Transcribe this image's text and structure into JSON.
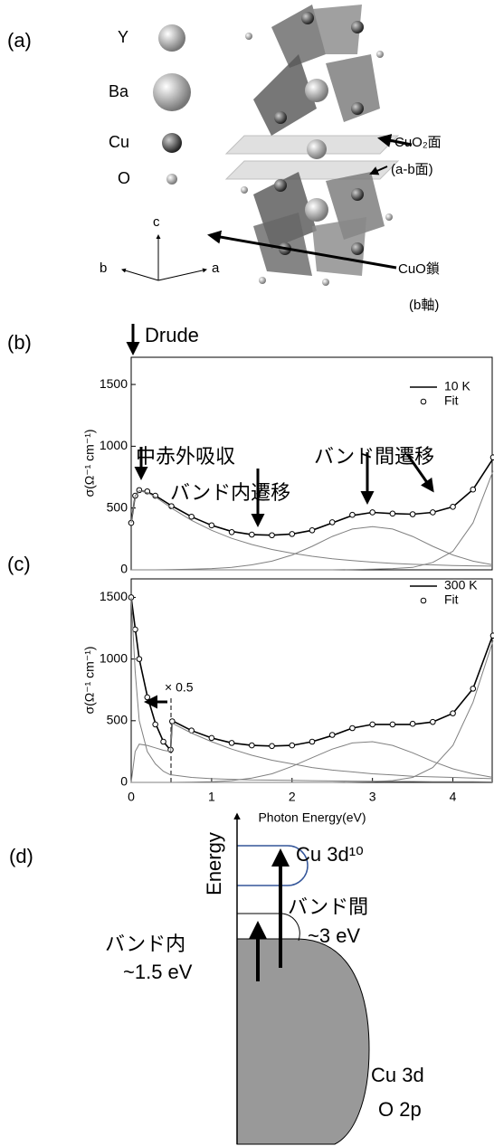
{
  "panel_a": {
    "label": "(a)",
    "atoms": [
      "Y",
      "Ba",
      "Cu",
      "O"
    ],
    "axes": [
      "c",
      "b",
      "a"
    ],
    "plane": "CuO₂面",
    "plane_note": "(a-b面)",
    "chain": "CuO鎖",
    "chain_note": "(b軸)"
  },
  "chart_data": [
    {
      "type": "line",
      "label": "(b)",
      "top_note": "Drude",
      "ylabel": "σ(Ω⁻¹ cm⁻¹)",
      "annotations": [
        "中赤外吸収",
        "バンド間遷移",
        "バンド内遷移"
      ],
      "xlim": [
        0,
        4.5
      ],
      "ylim": [
        0,
        1720
      ],
      "yticks": [
        0,
        500,
        1000,
        1500
      ],
      "legend": "upper right",
      "x": [
        0,
        0.05,
        0.1,
        0.2,
        0.3,
        0.5,
        0.75,
        1,
        1.25,
        1.5,
        1.75,
        2,
        2.25,
        2.5,
        2.75,
        3,
        3.25,
        3.5,
        3.75,
        4,
        4.25,
        4.5
      ],
      "series": [
        {
          "name": "10 K",
          "color": "#000000",
          "marker": "none",
          "values": [
            380,
            600,
            640,
            630,
            600,
            520,
            430,
            360,
            310,
            285,
            280,
            290,
            320,
            380,
            440,
            465,
            455,
            450,
            465,
            510,
            650,
            900
          ]
        },
        {
          "name": "Fit",
          "color": "#000000",
          "marker": "o",
          "values": [
            380,
            600,
            645,
            635,
            600,
            515,
            430,
            360,
            305,
            285,
            280,
            290,
            320,
            385,
            445,
            465,
            455,
            450,
            465,
            510,
            650,
            910
          ]
        },
        {
          "color": "#808080",
          "marker": "none",
          "values": [
            380,
            600,
            640,
            625,
            590,
            500,
            400,
            320,
            255,
            205,
            165,
            135,
            110,
            90,
            75,
            62,
            52,
            45,
            40,
            35,
            32,
            30
          ]
        },
        {
          "color": "#808080",
          "marker": "none",
          "values": [
            0,
            0,
            0,
            0,
            0,
            2,
            5,
            10,
            20,
            40,
            70,
            120,
            190,
            270,
            330,
            350,
            330,
            270,
            190,
            120,
            70,
            40
          ]
        },
        {
          "color": "#808080",
          "marker": "none",
          "values": [
            0,
            0,
            0,
            0,
            0,
            0,
            0,
            0,
            0,
            0,
            0,
            0,
            0,
            0,
            2,
            5,
            10,
            20,
            60,
            150,
            380,
            800
          ]
        }
      ]
    },
    {
      "type": "line",
      "label": "(c)",
      "ylabel": "σ(Ω⁻¹ cm⁻¹)",
      "xlabel": "Photon Energy(eV)",
      "annotations": [
        "× 0.5"
      ],
      "xlim": [
        0,
        4.5
      ],
      "ylim": [
        0,
        1650
      ],
      "xticks": [
        0,
        1,
        2,
        3,
        4
      ],
      "yticks": [
        0,
        500,
        1000,
        1500
      ],
      "legend": "upper right",
      "x": [
        0,
        0.05,
        0.1,
        0.2,
        0.3,
        0.4,
        0.49,
        0.51,
        0.75,
        1,
        1.25,
        1.5,
        1.75,
        2,
        2.25,
        2.5,
        2.75,
        3,
        3.25,
        3.5,
        3.75,
        4,
        4.25,
        4.5
      ],
      "series": [
        {
          "name": "300 K",
          "color": "#000000",
          "marker": "none",
          "values": [
            1500,
            1250,
            1000,
            700,
            480,
            330,
            260,
            500,
            420,
            360,
            320,
            300,
            295,
            300,
            330,
            380,
            440,
            470,
            470,
            470,
            490,
            560,
            760,
            1200
          ]
        },
        {
          "name": "Fit",
          "color": "#000000",
          "marker": "o",
          "values": [
            1500,
            1240,
            1000,
            690,
            470,
            330,
            265,
            495,
            420,
            360,
            320,
            300,
            295,
            300,
            330,
            385,
            440,
            470,
            470,
            475,
            490,
            560,
            760,
            1190
          ]
        },
        {
          "color": "#808080",
          "marker": "none",
          "values": [
            1500,
            900,
            500,
            250,
            150,
            90,
            60,
            60,
            40,
            30,
            25,
            20,
            18,
            16,
            14,
            12,
            10,
            9,
            8,
            7,
            6,
            5,
            5,
            4
          ]
        },
        {
          "color": "#808080",
          "marker": "none",
          "values": [
            0,
            250,
            310,
            300,
            280,
            260,
            250,
            480,
            400,
            330,
            270,
            220,
            180,
            150,
            120,
            100,
            85,
            70,
            60,
            50,
            45,
            40,
            35,
            30
          ]
        },
        {
          "color": "#808080",
          "marker": "none",
          "values": [
            0,
            0,
            0,
            0,
            0,
            0,
            0,
            0,
            2,
            5,
            15,
            35,
            70,
            130,
            200,
            270,
            320,
            330,
            300,
            240,
            170,
            110,
            70,
            40
          ]
        },
        {
          "color": "#808080",
          "marker": "none",
          "values": [
            0,
            0,
            0,
            0,
            0,
            0,
            0,
            0,
            0,
            0,
            0,
            0,
            0,
            0,
            0,
            0,
            2,
            5,
            15,
            40,
            120,
            300,
            650,
            1150
          ]
        }
      ]
    }
  ],
  "panel_d": {
    "label": "(d)",
    "axis": "Energy",
    "upper": "Cu 3d¹⁰",
    "inter": "バンド間",
    "inter_energy": "~3 eV",
    "intra": "バンド内",
    "intra_energy": "~1.5 eV",
    "lower_1": "Cu 3d",
    "lower_2": "O 2p"
  }
}
